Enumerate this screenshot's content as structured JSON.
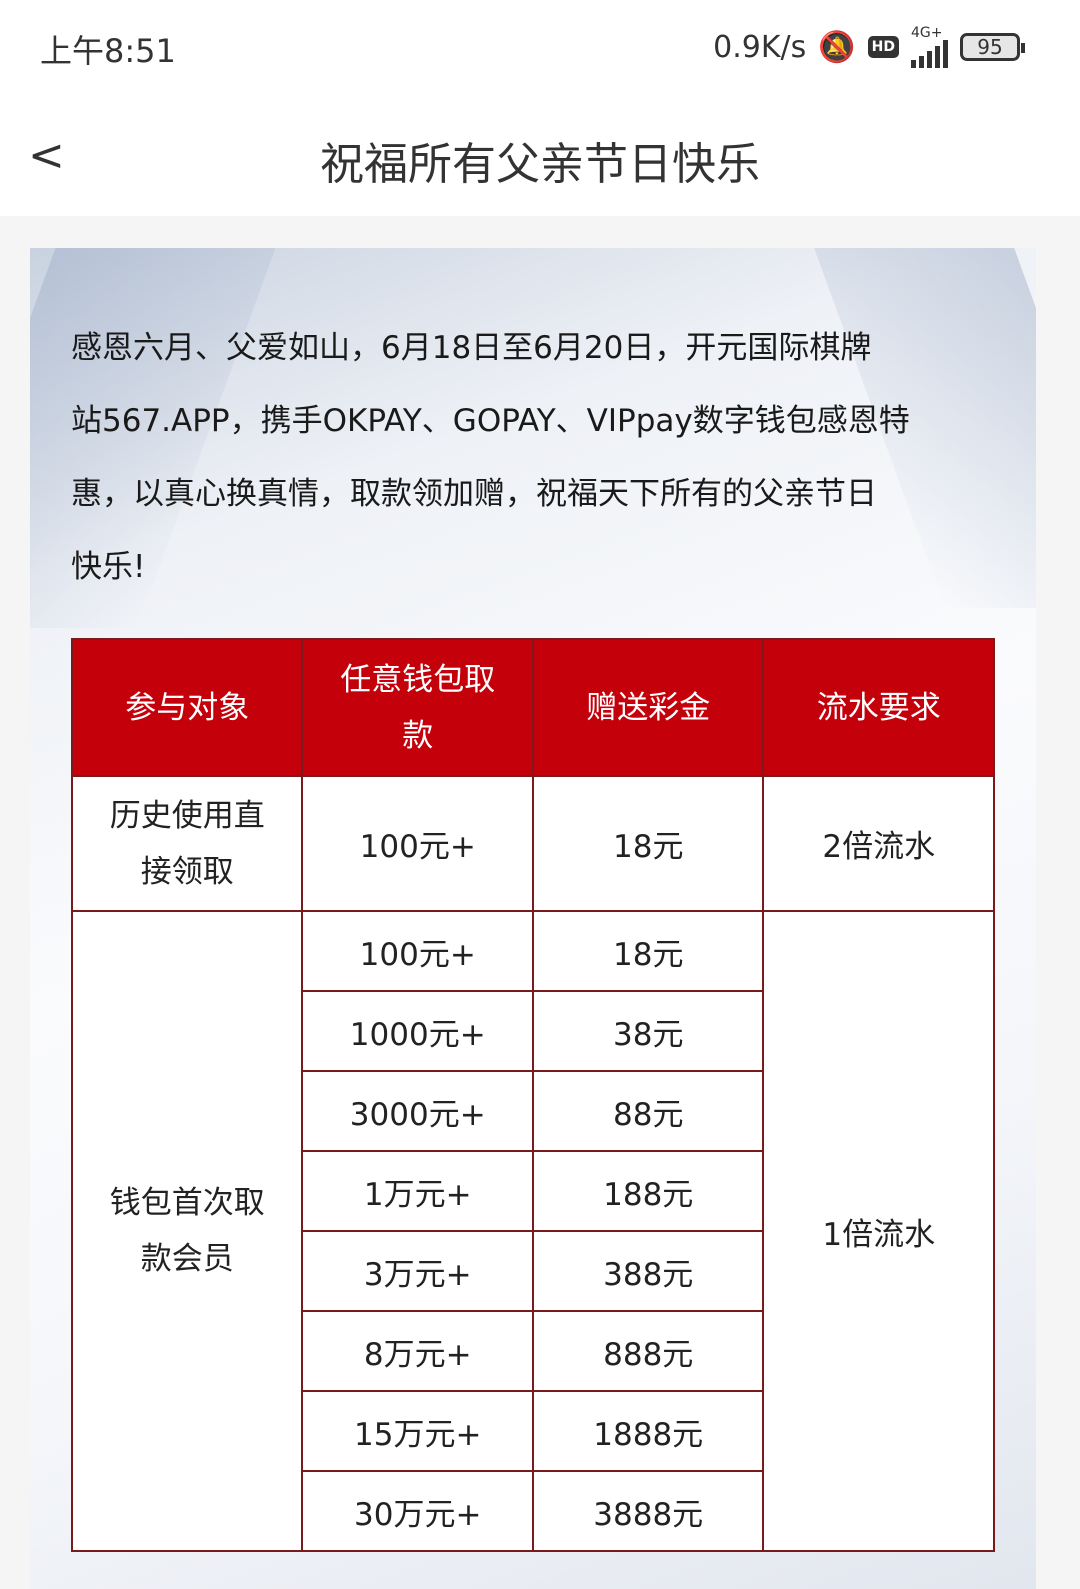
{
  "status_bar": {
    "time": "上午8:51",
    "speed": "0.9K/s",
    "hd": "HD",
    "network": "4G+",
    "battery": "95"
  },
  "header": {
    "title": "祝福所有父亲节日快乐",
    "back": "<"
  },
  "intro": {
    "lines": [
      "感恩六月、父爱如山，6月18日至6月20日，开元国际棋牌",
      "站567.APP，携手OKPAY、GOPAY、VIPpay数字钱包感恩特",
      "惠，以真心换真情，取款领加赠，祝福天下所有的父亲节日",
      "快乐!"
    ]
  },
  "table": {
    "headers": [
      "参与对象",
      "任意钱包取款",
      "赠送彩金",
      "流水要求"
    ],
    "group1": {
      "target": "历史使用直接领取",
      "amount": "100元+",
      "bonus": "18元",
      "turnover": "2倍流水"
    },
    "group2": {
      "target": "钱包首次取款会员",
      "turnover": "1倍流水",
      "rows": [
        {
          "amount": "100元+",
          "bonus": "18元"
        },
        {
          "amount": "1000元+",
          "bonus": "38元"
        },
        {
          "amount": "3000元+",
          "bonus": "88元"
        },
        {
          "amount": "1万元+",
          "bonus": "188元"
        },
        {
          "amount": "3万元+",
          "bonus": "388元"
        },
        {
          "amount": "8万元+",
          "bonus": "888元"
        },
        {
          "amount": "15万元+",
          "bonus": "1888元"
        },
        {
          "amount": "30万元+",
          "bonus": "3888元"
        }
      ]
    }
  },
  "colors": {
    "header_red": "#c4000b"
  }
}
